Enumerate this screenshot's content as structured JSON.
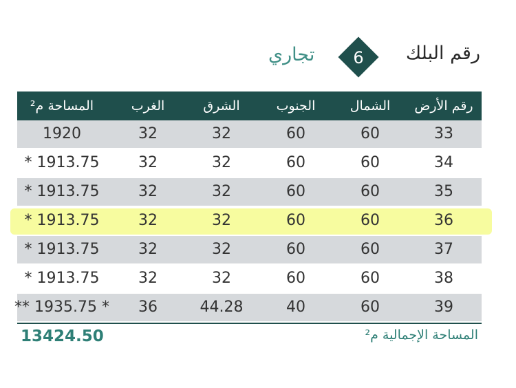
{
  "header": {
    "title": "رقم البلك",
    "block_number": "6",
    "category": "تجاري"
  },
  "table": {
    "columns": [
      "رقم الأرض",
      "الشمال",
      "الجنوب",
      "الشرق",
      "الغرب",
      "المساحة م²"
    ],
    "rows": [
      [
        "33",
        "60",
        "60",
        "32",
        "32",
        "1920"
      ],
      [
        "34",
        "60",
        "60",
        "32",
        "32",
        "* 1913.75"
      ],
      [
        "35",
        "60",
        "60",
        "32",
        "32",
        "* 1913.75"
      ],
      [
        "36",
        "60",
        "60",
        "32",
        "32",
        "* 1913.75"
      ],
      [
        "37",
        "60",
        "60",
        "32",
        "32",
        "* 1913.75"
      ],
      [
        "38",
        "60",
        "60",
        "32",
        "32",
        "* 1913.75"
      ],
      [
        "39",
        "60",
        "40",
        "44.28",
        "36",
        "** 1935.75 *"
      ]
    ]
  },
  "total": {
    "label": "المساحة الإجمالية م²",
    "value": "13424.50"
  }
}
